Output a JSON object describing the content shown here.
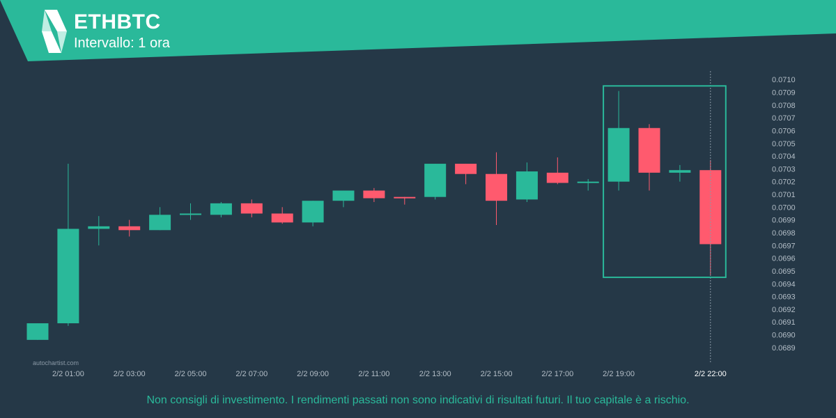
{
  "header": {
    "title": "ETHBTC",
    "subtitle": "Intervallo: 1 ora"
  },
  "footer": {
    "watermark": "autochartist.com",
    "disclaimer": "Non consigli di investimento. I rendimenti passati non sono indicativi di risultati futuri. Il tuo capitale è a rischio."
  },
  "colors": {
    "background": "#253847",
    "bullish": "#2ab99a",
    "bearish": "#ff5a6e",
    "banner": "#2ab99a",
    "axis_text": "#b4bec7"
  },
  "chart_data": {
    "type": "candlestick",
    "title": "ETHBTC",
    "ylim": [
      0.06885,
      0.07105
    ],
    "y_ticks": [
      "0.0710",
      "0.0709",
      "0.0708",
      "0.0707",
      "0.0706",
      "0.0705",
      "0.0704",
      "0.0703",
      "0.0702",
      "0.0701",
      "0.0700",
      "0.0699",
      "0.0698",
      "0.0697",
      "0.0696",
      "0.0695",
      "0.0694",
      "0.0693",
      "0.0692",
      "0.0691",
      "0.0690",
      "0.0689"
    ],
    "x_ticks": [
      "2/2 01:00",
      "2/2 03:00",
      "2/2 05:00",
      "2/2 07:00",
      "2/2 09:00",
      "2/2 11:00",
      "2/2 13:00",
      "2/2 15:00",
      "2/2 17:00",
      "2/2 19:00",
      "2/2 22:00"
    ],
    "candles": [
      {
        "o": 0.06896,
        "h": 0.06909,
        "l": 0.06896,
        "c": 0.06909
      },
      {
        "o": 0.06909,
        "h": 0.07034,
        "l": 0.06907,
        "c": 0.06983
      },
      {
        "o": 0.06983,
        "h": 0.06993,
        "l": 0.0697,
        "c": 0.06985
      },
      {
        "o": 0.06985,
        "h": 0.0699,
        "l": 0.06977,
        "c": 0.06982
      },
      {
        "o": 0.06982,
        "h": 0.07,
        "l": 0.06982,
        "c": 0.06994
      },
      {
        "o": 0.06994,
        "h": 0.07003,
        "l": 0.0699,
        "c": 0.06995
      },
      {
        "o": 0.06994,
        "h": 0.07004,
        "l": 0.06992,
        "c": 0.07003
      },
      {
        "o": 0.07003,
        "h": 0.07006,
        "l": 0.06992,
        "c": 0.06995
      },
      {
        "o": 0.06995,
        "h": 0.07,
        "l": 0.06987,
        "c": 0.06988
      },
      {
        "o": 0.06988,
        "h": 0.07005,
        "l": 0.06985,
        "c": 0.07005
      },
      {
        "o": 0.07005,
        "h": 0.07013,
        "l": 0.07,
        "c": 0.07013
      },
      {
        "o": 0.07013,
        "h": 0.07015,
        "l": 0.07004,
        "c": 0.07007
      },
      {
        "o": 0.07008,
        "h": 0.07008,
        "l": 0.07002,
        "c": 0.07007
      },
      {
        "o": 0.07008,
        "h": 0.07034,
        "l": 0.07006,
        "c": 0.07034
      },
      {
        "o": 0.07034,
        "h": 0.07034,
        "l": 0.07018,
        "c": 0.07026
      },
      {
        "o": 0.07026,
        "h": 0.07043,
        "l": 0.06986,
        "c": 0.07005
      },
      {
        "o": 0.07006,
        "h": 0.07035,
        "l": 0.07004,
        "c": 0.07028
      },
      {
        "o": 0.07027,
        "h": 0.07039,
        "l": 0.07018,
        "c": 0.07019
      },
      {
        "o": 0.07019,
        "h": 0.07022,
        "l": 0.07013,
        "c": 0.0702
      },
      {
        "o": 0.0702,
        "h": 0.07091,
        "l": 0.07013,
        "c": 0.07062
      },
      {
        "o": 0.07062,
        "h": 0.07065,
        "l": 0.07013,
        "c": 0.07027
      },
      {
        "o": 0.07027,
        "h": 0.07033,
        "l": 0.0702,
        "c": 0.07029
      },
      {
        "o": 0.07029,
        "h": 0.07037,
        "l": 0.06947,
        "c": 0.06971
      }
    ],
    "pattern_box": {
      "start_index": 19,
      "end_index": 22,
      "high": 0.07095,
      "low": 0.06945
    }
  }
}
